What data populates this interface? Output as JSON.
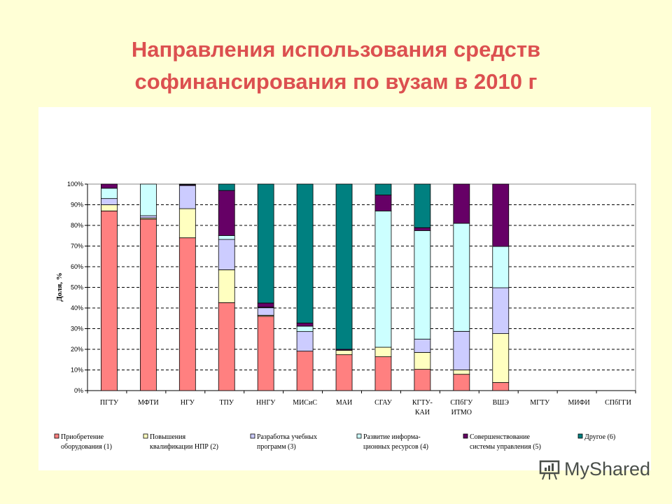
{
  "title": {
    "line1": "Направления использования средств",
    "line2": "софинансирования по вузам в 2010 г"
  },
  "watermark": "MyShared",
  "chart_data": {
    "type": "bar",
    "stacked": "percent",
    "ylabel": "Доля, %",
    "xlabel": "",
    "ylim": [
      0,
      100
    ],
    "yticks": [
      "0%",
      "10%",
      "20%",
      "30%",
      "40%",
      "50%",
      "60%",
      "70%",
      "80%",
      "90%",
      "100%"
    ],
    "grid": "horizontal dashed",
    "legend_position": "bottom",
    "categories": [
      [
        "ПГТУ"
      ],
      [
        "МФТИ"
      ],
      [
        "НГУ"
      ],
      [
        "ТПУ"
      ],
      [
        "ННГУ"
      ],
      [
        "МИСиС"
      ],
      [
        "МАИ"
      ],
      [
        "СГАУ"
      ],
      [
        "КГТУ-",
        "КАИ"
      ],
      [
        "СПбГУ",
        "ИТМО"
      ],
      [
        "ВШЭ"
      ],
      [
        "МГТУ"
      ],
      [
        "МИФИ"
      ],
      [
        "СПбГГИ"
      ]
    ],
    "series": [
      {
        "name": [
          "Приобретение",
          "оборудования (1)"
        ],
        "color": "#FF8080",
        "values": [
          87,
          83,
          74,
          42.6,
          36,
          19.1,
          17.4,
          16.4,
          10.3,
          7.9,
          3.9,
          null,
          null,
          null
        ]
      },
      {
        "name": [
          "Повышения",
          "квалификации НПР (2)"
        ],
        "color": "#FFFFC0",
        "values": [
          3,
          0.6,
          14.1,
          15.9,
          0.5,
          0,
          2.1,
          4.6,
          8.2,
          2.1,
          23.7,
          null,
          null,
          null
        ]
      },
      {
        "name": [
          "Разработка учебных",
          "программ (3)"
        ],
        "color": "#CCCCFF",
        "values": [
          3,
          1.1,
          11.2,
          14.7,
          3.6,
          9.5,
          0,
          0,
          6.4,
          18.7,
          22.2,
          null,
          null,
          null
        ]
      },
      {
        "name": [
          "Развитие информа-",
          "ционных ресурсов (4)"
        ],
        "color": "#CCFFFF",
        "values": [
          5,
          15.3,
          0,
          1.9,
          0.3,
          2.6,
          0,
          66,
          52.6,
          52.3,
          20,
          null,
          null,
          null
        ]
      },
      {
        "name": [
          "Совершенствование",
          "системы управления (5)"
        ],
        "color": "#660066",
        "values": [
          2,
          0,
          0.4,
          21.8,
          2,
          1.5,
          0.5,
          7.7,
          1.4,
          19,
          30.2,
          null,
          null,
          null
        ]
      },
      {
        "name": [
          "Другое (6)"
        ],
        "color": "#008080",
        "values": [
          0,
          0,
          0.3,
          3.1,
          57.6,
          67.3,
          80,
          5.3,
          21.1,
          0,
          0,
          null,
          null,
          null
        ]
      }
    ]
  }
}
